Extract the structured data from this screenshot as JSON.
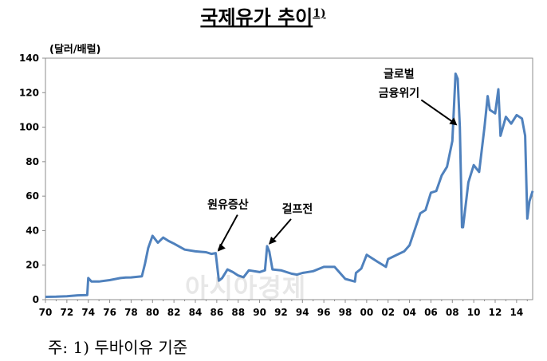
{
  "chart_data": {
    "type": "line",
    "title": "국제유가 추이",
    "title_sup": "1)",
    "unit_label": "(달러/배럴)",
    "ylim": [
      0,
      140
    ],
    "y_ticks": [
      0,
      20,
      40,
      60,
      80,
      100,
      120,
      140
    ],
    "x_ticks": [
      "70",
      "72",
      "74",
      "76",
      "78",
      "80",
      "82",
      "84",
      "86",
      "88",
      "90",
      "92",
      "94",
      "96",
      "98",
      "00",
      "02",
      "04",
      "06",
      "08",
      "10",
      "12",
      "14"
    ],
    "x_range": [
      1970,
      2015.5
    ],
    "color": "#4f81bd",
    "series": [
      {
        "x": [
          1970,
          1971,
          1972,
          1973,
          1973.9,
          1974.0,
          1974.3,
          1975,
          1976,
          1977,
          1977.5,
          1978,
          1979,
          1979.3,
          1979.6,
          1980,
          1980.5,
          1981,
          1981.5,
          1982,
          1983,
          1984,
          1985,
          1985.5,
          1985.9,
          1986.2,
          1986.5,
          1987,
          1987.5,
          1988,
          1988.5,
          1989,
          1990,
          1990.5,
          1990.7,
          1990.9,
          1991.2,
          1992,
          1993,
          1993.5,
          1994,
          1995,
          1996,
          1997,
          1998,
          1998.9,
          1999,
          1999.5,
          2000,
          2001,
          2001.8,
          2002,
          2003,
          2003.5,
          2004,
          2005,
          2005.5,
          2006,
          2006.5,
          2007,
          2007.5,
          2008,
          2008.3,
          2008.5,
          2008.7,
          2008.9,
          2009,
          2009.5,
          2010,
          2010.5,
          2011,
          2011.3,
          2011.5,
          2012,
          2012.3,
          2012.5,
          2013,
          2013.5,
          2014,
          2014.5,
          2014.8,
          2015,
          2015.2,
          2015.5
        ],
        "y": [
          1.6,
          1.7,
          2.0,
          2.5,
          2.7,
          12.5,
          10.5,
          10.5,
          11.3,
          12.5,
          12.8,
          12.9,
          13.5,
          21.0,
          30.0,
          37.0,
          33.0,
          36.0,
          34.0,
          32.5,
          29.0,
          28.0,
          27.5,
          26.5,
          27.0,
          11.0,
          12.5,
          17.5,
          16.0,
          14.0,
          13.0,
          17.0,
          16.0,
          17.0,
          31.0,
          28.0,
          17.5,
          17.0,
          15.0,
          14.5,
          15.5,
          16.5,
          19.0,
          19.0,
          12.0,
          10.5,
          15.5,
          18.0,
          26.0,
          22.0,
          19.0,
          23.5,
          26.5,
          28.0,
          31.5,
          50.0,
          52.0,
          62.0,
          63.0,
          72.0,
          77.0,
          92.0,
          131.0,
          128.0,
          100.0,
          42.0,
          42.0,
          68.0,
          78.0,
          74.0,
          100.0,
          118.0,
          110.0,
          108.0,
          122.0,
          95.0,
          106.0,
          102.0,
          107.0,
          105.0,
          95.0,
          47.0,
          57.0,
          63.0
        ]
      }
    ],
    "annotations": [
      {
        "text": "원유증산",
        "x": 1986.0,
        "y": 27.0
      },
      {
        "text": "걸프전",
        "x": 1990.7,
        "y": 31.0
      },
      {
        "text": "글로벌",
        "line2": "금융위기",
        "x": 2008.6,
        "y": 101.0
      }
    ],
    "footnote": "주: 1) 두바이유 기준",
    "watermark": "아시아경제"
  }
}
